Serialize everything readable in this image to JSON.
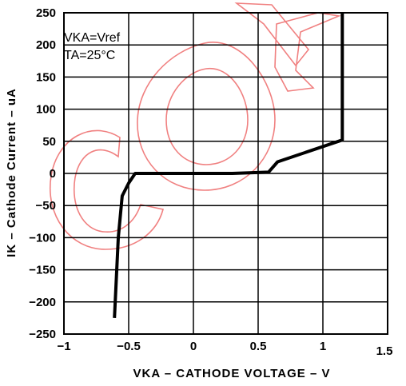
{
  "chart_data": {
    "type": "line",
    "title": "",
    "xlabel": "VKA  –  CATHODE VOLTAGE  –  V",
    "ylabel": "IK  –  Cathode Current  –  uA",
    "xlim": [
      -1,
      1.5
    ],
    "ylim": [
      -250,
      250
    ],
    "x_ticks": [
      -1,
      -0.5,
      0,
      0.5,
      1,
      1.5
    ],
    "x_tick_labels": [
      "−1",
      "−0.5",
      "0",
      "0.5",
      "1",
      "1.5"
    ],
    "y_ticks": [
      250,
      200,
      150,
      100,
      50,
      0,
      -50,
      -100,
      -150,
      -200,
      -250
    ],
    "y_tick_labels": [
      "250",
      "200",
      "150",
      "100",
      "50",
      "0",
      "−50",
      "−100",
      "−150",
      "−200",
      "−250"
    ],
    "grid": true,
    "annotations": [
      "VKA=Vref",
      "TA=25°C"
    ],
    "series": [
      {
        "color": "#000000",
        "x": [
          -0.61,
          -0.58,
          -0.55,
          -0.5,
          -0.45,
          0.0,
          0.3,
          0.58,
          0.65,
          1.15,
          1.15
        ],
        "y": [
          -225,
          -100,
          -35,
          -15,
          0,
          0,
          0,
          2,
          18,
          52,
          250
        ]
      }
    ],
    "watermark_color": "#f08080"
  }
}
